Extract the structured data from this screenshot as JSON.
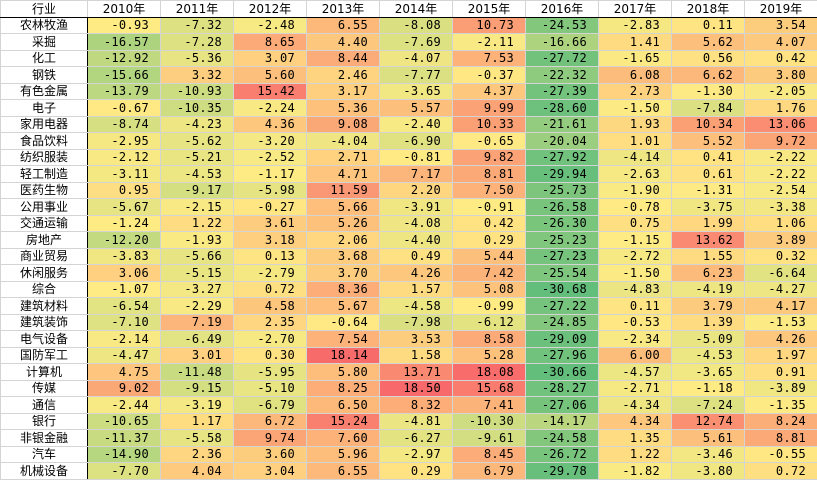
{
  "header": {
    "industry_label": "行业",
    "years": [
      "2010年",
      "2011年",
      "2012年",
      "2013年",
      "2014年",
      "2015年",
      "2016年",
      "2017年",
      "2018年",
      "2019年"
    ]
  },
  "rows": [
    {
      "name": "农林牧渔",
      "values": [
        -0.93,
        -7.32,
        -2.48,
        6.55,
        -8.08,
        10.73,
        -24.53,
        -2.83,
        0.11,
        3.54
      ]
    },
    {
      "name": "采掘",
      "values": [
        -16.57,
        -7.28,
        8.65,
        4.4,
        -7.69,
        -2.11,
        -16.66,
        1.41,
        5.62,
        4.07
      ]
    },
    {
      "name": "化工",
      "values": [
        -12.92,
        -5.36,
        3.07,
        8.44,
        -4.07,
        7.53,
        -27.72,
        -1.65,
        0.56,
        0.42
      ]
    },
    {
      "name": "钢铁",
      "values": [
        -15.66,
        3.32,
        5.6,
        2.46,
        -7.77,
        -0.37,
        -22.32,
        6.08,
        6.62,
        3.8
      ]
    },
    {
      "name": "有色金属",
      "values": [
        -13.79,
        -10.93,
        15.42,
        3.17,
        -3.65,
        4.37,
        -27.39,
        2.73,
        -1.3,
        -2.05
      ]
    },
    {
      "name": "电子",
      "values": [
        -0.67,
        -10.35,
        -2.24,
        5.36,
        5.57,
        9.99,
        -28.6,
        -1.5,
        -7.84,
        1.76
      ]
    },
    {
      "name": "家用电器",
      "values": [
        -8.74,
        -4.23,
        4.36,
        9.08,
        -2.4,
        10.33,
        -21.61,
        1.93,
        10.34,
        13.06
      ]
    },
    {
      "name": "食品饮料",
      "values": [
        -2.95,
        -5.62,
        -3.2,
        -4.04,
        -6.9,
        -0.65,
        -20.04,
        1.01,
        5.52,
        9.72
      ]
    },
    {
      "name": "纺织服装",
      "values": [
        -2.12,
        -5.21,
        -2.52,
        2.71,
        -0.81,
        9.82,
        -27.92,
        -4.14,
        0.41,
        -2.22
      ]
    },
    {
      "name": "轻工制造",
      "values": [
        -3.11,
        -4.53,
        -1.17,
        4.71,
        7.17,
        8.81,
        -29.94,
        -2.63,
        0.61,
        -2.22
      ]
    },
    {
      "name": "医药生物",
      "values": [
        0.95,
        -9.17,
        -5.98,
        11.59,
        2.2,
        7.5,
        -25.73,
        -1.9,
        -1.31,
        -2.54
      ]
    },
    {
      "name": "公用事业",
      "values": [
        -5.67,
        -2.15,
        -0.27,
        5.66,
        -3.91,
        -0.91,
        -26.58,
        -0.78,
        -3.75,
        -3.38
      ]
    },
    {
      "name": "交通运输",
      "values": [
        -1.24,
        1.22,
        3.61,
        5.26,
        -4.08,
        0.42,
        -26.3,
        0.75,
        1.99,
        1.06
      ]
    },
    {
      "name": "房地产",
      "values": [
        -12.2,
        -1.93,
        3.18,
        2.06,
        -4.4,
        0.29,
        -25.23,
        -1.15,
        13.62,
        3.89
      ]
    },
    {
      "name": "商业贸易",
      "values": [
        -3.83,
        -5.66,
        0.13,
        3.68,
        0.49,
        5.44,
        -27.23,
        -2.72,
        1.55,
        0.32
      ]
    },
    {
      "name": "休闲服务",
      "values": [
        3.06,
        -5.15,
        -2.79,
        3.7,
        4.26,
        7.42,
        -25.54,
        -1.5,
        6.23,
        -6.64
      ]
    },
    {
      "name": "综合",
      "values": [
        -1.07,
        -3.27,
        0.72,
        8.36,
        1.57,
        5.08,
        -30.68,
        -4.83,
        -4.19,
        -4.27
      ]
    },
    {
      "name": "建筑材料",
      "values": [
        -6.54,
        -2.29,
        4.58,
        5.67,
        -4.58,
        -0.99,
        -27.22,
        0.11,
        3.79,
        4.17
      ]
    },
    {
      "name": "建筑装饰",
      "values": [
        -7.1,
        7.19,
        2.35,
        -0.64,
        -7.98,
        -6.12,
        -24.85,
        -0.53,
        1.39,
        -1.53
      ]
    },
    {
      "name": "电气设备",
      "values": [
        -2.14,
        -6.49,
        -2.7,
        7.54,
        3.53,
        8.58,
        -29.09,
        -2.34,
        -5.09,
        4.26
      ]
    },
    {
      "name": "国防军工",
      "values": [
        -4.47,
        3.01,
        0.3,
        18.14,
        1.58,
        5.28,
        -27.96,
        6.0,
        -4.53,
        1.97
      ]
    },
    {
      "name": "计算机",
      "values": [
        4.75,
        -11.48,
        -5.95,
        5.8,
        13.71,
        18.08,
        -30.66,
        -4.57,
        -3.65,
        0.91
      ]
    },
    {
      "name": "传媒",
      "values": [
        9.02,
        -9.15,
        -5.1,
        8.25,
        18.5,
        15.68,
        -28.27,
        -2.71,
        -1.18,
        -3.89
      ]
    },
    {
      "name": "通信",
      "values": [
        -2.44,
        -3.19,
        -6.79,
        6.5,
        8.32,
        7.41,
        -27.06,
        -4.34,
        -7.24,
        -1.35
      ]
    },
    {
      "name": "银行",
      "values": [
        -10.65,
        1.17,
        6.72,
        15.24,
        -4.81,
        -10.3,
        -14.17,
        4.34,
        12.74,
        8.24
      ]
    },
    {
      "name": "非银金融",
      "values": [
        -11.37,
        -5.58,
        9.74,
        7.6,
        -6.27,
        -9.61,
        -24.58,
        1.35,
        5.61,
        8.81
      ]
    },
    {
      "name": "汽车",
      "values": [
        -14.9,
        2.36,
        3.6,
        5.96,
        -2.97,
        8.45,
        -26.72,
        1.22,
        -3.46,
        -0.55
      ]
    },
    {
      "name": "机械设备",
      "values": [
        -7.7,
        4.04,
        3.04,
        6.55,
        0.29,
        6.79,
        -29.78,
        -1.82,
        -3.8,
        0.72
      ]
    }
  ],
  "color_scale": {
    "min_color": "#63be7b",
    "mid_color": "#ffeb84",
    "max_color": "#f8696b"
  }
}
